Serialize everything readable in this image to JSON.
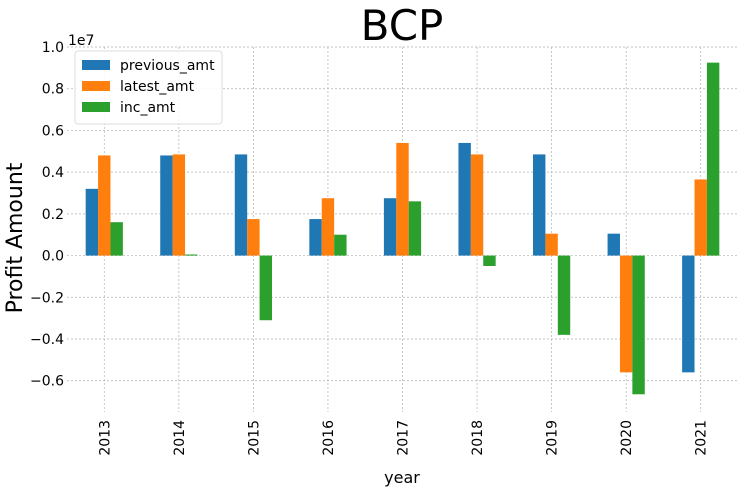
{
  "chart_data": {
    "type": "bar",
    "title": "BCP",
    "xlabel": "year",
    "ylabel": "Profit Amount",
    "y_multiplier_label": "1e7",
    "categories": [
      "2013",
      "2014",
      "2015",
      "2016",
      "2017",
      "2018",
      "2019",
      "2020",
      "2021"
    ],
    "series": [
      {
        "name": "previous_amt",
        "color": "#1f77b4",
        "values": [
          3200000,
          4800000,
          4850000,
          1750000,
          2750000,
          5400000,
          4850000,
          1050000,
          -5600000
        ]
      },
      {
        "name": "latest_amt",
        "color": "#ff7f0e",
        "values": [
          4800000,
          4850000,
          1750000,
          2750000,
          5400000,
          4850000,
          1050000,
          -5600000,
          3650000
        ]
      },
      {
        "name": "inc_amt",
        "color": "#2ca02c",
        "values": [
          1600000,
          50000,
          -3100000,
          1000000,
          2600000,
          -500000,
          -3800000,
          -6650000,
          9250000
        ]
      }
    ],
    "ylim": [
      -7500000,
      10000000
    ],
    "yticks": [
      -6000000,
      -4000000,
      -2000000,
      0,
      2000000,
      4000000,
      6000000,
      8000000,
      10000000
    ],
    "ytick_labels": [
      "−0.6",
      "−0.4",
      "−0.2",
      "0.0",
      "0.2",
      "0.4",
      "0.6",
      "0.8",
      "1.0"
    ],
    "grid": true,
    "legend_position": "top-left"
  }
}
